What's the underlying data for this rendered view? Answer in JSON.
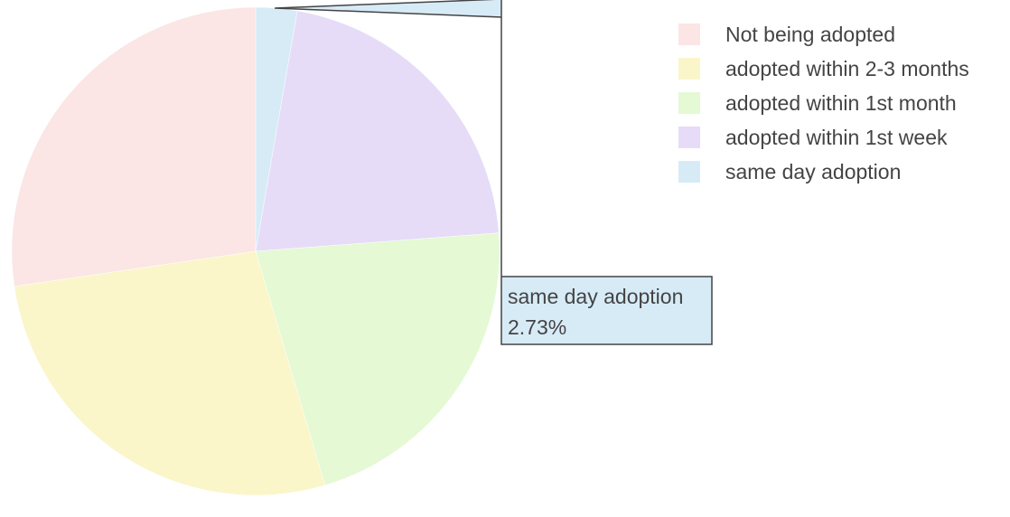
{
  "chart_data": {
    "type": "pie",
    "title": "",
    "slices": [
      {
        "label": "Not being adopted",
        "value": 27.3,
        "color": "#fbe5e5"
      },
      {
        "label": "adopted within 2-3 months",
        "value": 27.3,
        "color": "#faf6c9"
      },
      {
        "label": "adopted within 1st month",
        "value": 21.6,
        "color": "#e4f9d4"
      },
      {
        "label": "adopted within 1st week",
        "value": 21.07,
        "color": "#e6dcf7"
      },
      {
        "label": "same day adoption",
        "value": 2.73,
        "color": "#d7ebf7"
      }
    ],
    "legend_position": "top-right",
    "hover": {
      "label": "same day adoption",
      "value_text": "2.73%"
    }
  }
}
